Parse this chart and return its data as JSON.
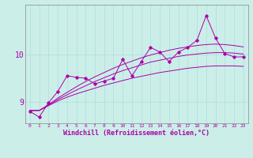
{
  "title": "",
  "xlabel": "Windchill (Refroidissement éolien,°C)",
  "ylabel": "",
  "bg_color": "#cceee8",
  "line_color": "#aa00aa",
  "grid_color": "#aadddd",
  "axis_color": "#aa00aa",
  "x_ticks": [
    0,
    1,
    2,
    3,
    4,
    5,
    6,
    7,
    8,
    9,
    10,
    11,
    12,
    13,
    14,
    15,
    16,
    17,
    18,
    19,
    20,
    21,
    22,
    23
  ],
  "y_ticks": [
    9,
    10
  ],
  "ylim": [
    8.55,
    11.05
  ],
  "xlim": [
    -0.5,
    23.5
  ],
  "zigzag_y": [
    8.8,
    8.68,
    8.98,
    9.22,
    9.55,
    9.52,
    9.5,
    9.38,
    9.44,
    9.5,
    9.9,
    9.55,
    9.85,
    10.15,
    10.05,
    9.85,
    10.05,
    10.15,
    10.3,
    10.82,
    10.35,
    10.02,
    9.95,
    9.95
  ],
  "smooth1_y": [
    8.82,
    8.82,
    8.92,
    9.02,
    9.1,
    9.17,
    9.23,
    9.29,
    9.35,
    9.4,
    9.45,
    9.5,
    9.54,
    9.58,
    9.62,
    9.65,
    9.68,
    9.71,
    9.73,
    9.75,
    9.76,
    9.76,
    9.76,
    9.75
  ],
  "smooth2_y": [
    8.82,
    8.82,
    8.93,
    9.05,
    9.15,
    9.25,
    9.34,
    9.43,
    9.51,
    9.59,
    9.66,
    9.72,
    9.78,
    9.84,
    9.88,
    9.92,
    9.96,
    9.99,
    10.01,
    10.03,
    10.04,
    10.04,
    10.03,
    10.01
  ],
  "smooth3_y": [
    8.82,
    8.82,
    8.94,
    9.08,
    9.2,
    9.32,
    9.43,
    9.53,
    9.62,
    9.71,
    9.79,
    9.86,
    9.93,
    9.99,
    10.04,
    10.09,
    10.13,
    10.16,
    10.19,
    10.21,
    10.22,
    10.21,
    10.19,
    10.16
  ]
}
